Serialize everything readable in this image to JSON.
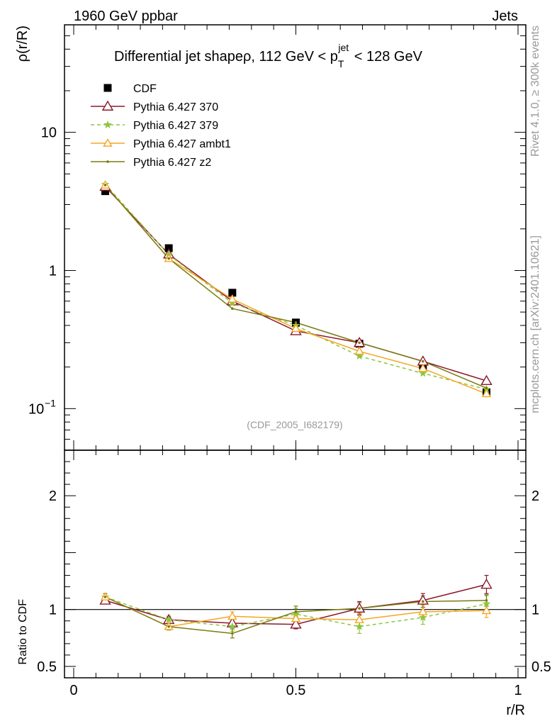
{
  "header": {
    "left": "1960 GeV ppbar",
    "right": "Jets"
  },
  "side_labels": {
    "rivet": "Rivet 4.1.0, ≥ 300k events",
    "mcplots": "mcplots.cern.ch [arXiv:2401.10621]"
  },
  "chart_data": {
    "type": "line",
    "title_main": "Differential jet shapeρ, 112 GeV < p",
    "title_sup": "jet",
    "title_sub": "T",
    "title_tail": " < 128 GeV",
    "analysis_id": "(CDF_2005_I682179)",
    "xlabel": "r/R",
    "ylabel_top": "ρ(r/R)",
    "ylabel_bottom": "Ratio to CDF",
    "xlim": [
      0,
      1
    ],
    "ylim_top": [
      0.05,
      60
    ],
    "ylim_bottom": [
      0.4,
      2.4
    ],
    "x_ticks": [
      {
        "value": 0,
        "label": "0"
      },
      {
        "value": 0.5,
        "label": "0.5"
      },
      {
        "value": 1,
        "label": "1"
      }
    ],
    "y_ticks_top": [
      {
        "value": 10,
        "label": "10"
      },
      {
        "value": 1,
        "label": "1"
      },
      {
        "value": 0.1,
        "label": "10",
        "exp": "−1"
      }
    ],
    "y_ticks_bottom": [
      {
        "value": 2,
        "label": "2"
      },
      {
        "value": 1,
        "label": "1"
      },
      {
        "value": 0.5,
        "label": "0.5"
      }
    ],
    "x": [
      0.071,
      0.214,
      0.357,
      0.5,
      0.643,
      0.786,
      0.929
    ],
    "data": {
      "name": "CDF",
      "values": [
        3.75,
        1.45,
        0.69,
        0.42,
        0.295,
        0.205,
        0.131
      ],
      "errors": [
        0.08,
        0.04,
        0.02,
        0.015,
        0.01,
        0.008,
        0.006
      ]
    },
    "series": [
      {
        "name": "Pythia 6.427 370",
        "color": "#8b1a2b",
        "marker": "triangle-open-large",
        "dash": "",
        "values": [
          4.05,
          1.31,
          0.6,
          0.365,
          0.3,
          0.22,
          0.159
        ],
        "ratio": [
          1.08,
          0.91,
          0.88,
          0.87,
          1.01,
          1.08,
          1.22
        ],
        "ratio_err": [
          0.02,
          0.03,
          0.04,
          0.04,
          0.06,
          0.06,
          0.08
        ]
      },
      {
        "name": "Pythia 6.427 379",
        "color": "#8cc63f",
        "marker": "star",
        "dash": "5,4",
        "values": [
          4.2,
          1.3,
          0.58,
          0.4,
          0.24,
          0.18,
          0.138
        ],
        "ratio": [
          1.11,
          0.91,
          0.85,
          0.96,
          0.85,
          0.93,
          1.05
        ],
        "ratio_err": [
          0.03,
          0.03,
          0.04,
          0.05,
          0.06,
          0.06,
          0.07
        ]
      },
      {
        "name": "Pythia 6.427 ambt1",
        "color": "#f5a623",
        "marker": "triangle-open",
        "dash": "",
        "values": [
          4.15,
          1.22,
          0.62,
          0.38,
          0.26,
          0.195,
          0.128
        ],
        "ratio": [
          1.11,
          0.85,
          0.94,
          0.92,
          0.91,
          0.98,
          0.99
        ],
        "ratio_err": [
          0.03,
          0.03,
          0.04,
          0.05,
          0.06,
          0.06,
          0.06
        ]
      },
      {
        "name": "Pythia 6.427 z2",
        "color": "#7a7a12",
        "marker": "dot",
        "dash": "",
        "values": [
          4.15,
          1.22,
          0.53,
          0.42,
          0.3,
          0.22,
          0.141
        ],
        "ratio": [
          1.11,
          0.85,
          0.79,
          0.98,
          1.01,
          1.07,
          1.08
        ],
        "ratio_err": [
          0.03,
          0.03,
          0.04,
          0.05,
          0.05,
          0.05,
          0.05
        ]
      }
    ]
  }
}
